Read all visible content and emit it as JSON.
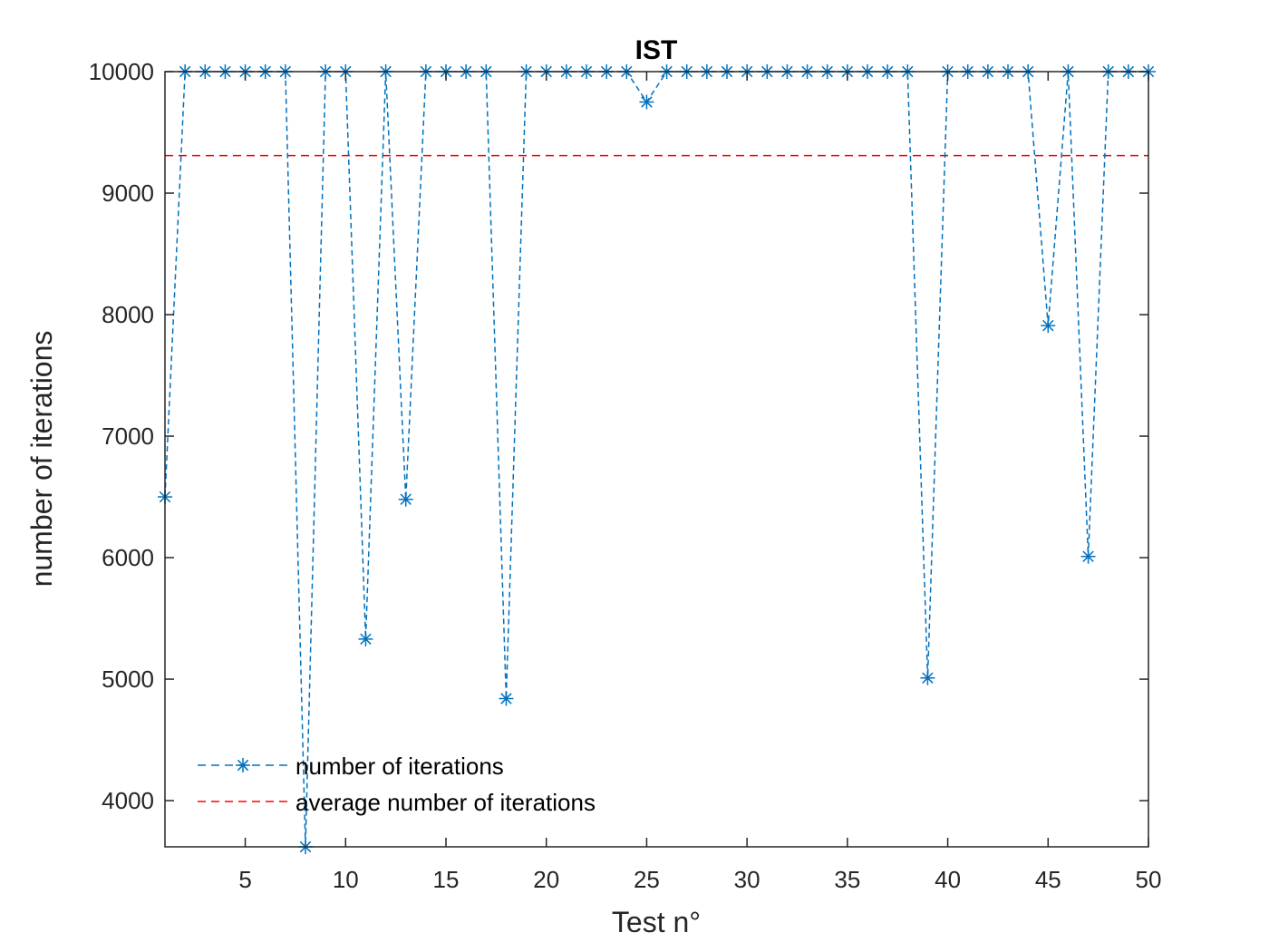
{
  "chart_data": {
    "type": "line",
    "title": "IST",
    "xlabel": "Test n°",
    "ylabel": "number of iterations",
    "xlim": [
      1,
      50
    ],
    "ylim": [
      3620,
      10000
    ],
    "xticks": [
      5,
      10,
      15,
      20,
      25,
      30,
      35,
      40,
      45,
      50
    ],
    "yticks": [
      4000,
      5000,
      6000,
      7000,
      8000,
      9000,
      10000
    ],
    "grid": false,
    "legend_position": "bottom-left",
    "x": [
      1,
      2,
      3,
      4,
      5,
      6,
      7,
      8,
      9,
      10,
      11,
      12,
      13,
      14,
      15,
      16,
      17,
      18,
      19,
      20,
      21,
      22,
      23,
      24,
      25,
      26,
      27,
      28,
      29,
      30,
      31,
      32,
      33,
      34,
      35,
      36,
      37,
      38,
      39,
      40,
      41,
      42,
      43,
      44,
      45,
      46,
      47,
      48,
      49,
      50
    ],
    "series": [
      {
        "name": "number of iterations",
        "style": "dashed-with-asterisk-markers",
        "color": "#0072BD",
        "values": [
          6500,
          10000,
          10000,
          10000,
          10000,
          10000,
          10000,
          3620,
          10000,
          10000,
          5330,
          10000,
          6480,
          10000,
          10000,
          10000,
          10000,
          4840,
          10000,
          10000,
          10000,
          10000,
          10000,
          10000,
          9750,
          10000,
          10000,
          10000,
          10000,
          10000,
          10000,
          10000,
          10000,
          10000,
          10000,
          10000,
          10000,
          10000,
          5010,
          10000,
          10000,
          10000,
          10000,
          10000,
          7910,
          10000,
          6010,
          10000,
          10000,
          10000
        ]
      },
      {
        "name": "average number of iterations",
        "style": "dashed",
        "color": "#FF0000",
        "values": [
          9309,
          9309,
          9309,
          9309,
          9309,
          9309,
          9309,
          9309,
          9309,
          9309,
          9309,
          9309,
          9309,
          9309,
          9309,
          9309,
          9309,
          9309,
          9309,
          9309,
          9309,
          9309,
          9309,
          9309,
          9309,
          9309,
          9309,
          9309,
          9309,
          9309,
          9309,
          9309,
          9309,
          9309,
          9309,
          9309,
          9309,
          9309,
          9309,
          9309,
          9309,
          9309,
          9309,
          9309,
          9309,
          9309,
          9309,
          9309,
          9309,
          9309
        ]
      }
    ]
  }
}
